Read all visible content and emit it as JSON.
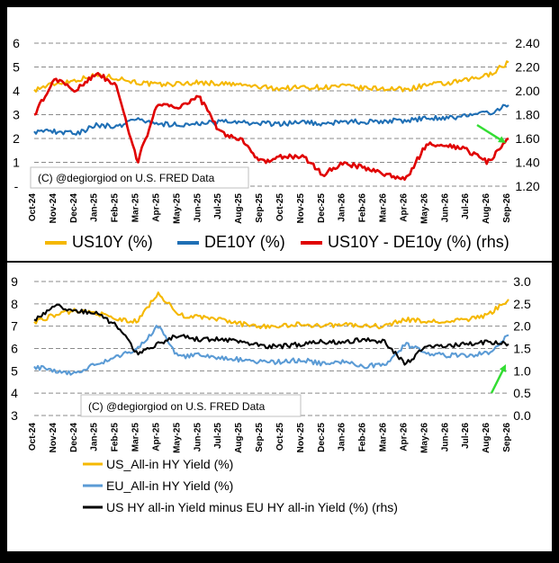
{
  "chart_data": [
    {
      "type": "line",
      "x_ticks": [
        "Oct-24",
        "Nov-24",
        "Dec-24",
        "Jan-25",
        "Feb-25",
        "Mar-25",
        "Apr-25",
        "May-25",
        "Jun-25",
        "Jul-25",
        "Aug-25",
        "Sep-25",
        "Oct-25",
        "Nov-25",
        "Dec-25",
        "Jan-26",
        "Feb-26",
        "Mar-26",
        "Apr-26",
        "May-26",
        "Jun-26",
        "Jul-26",
        "Aug-26",
        "Sep-26"
      ],
      "y_left_ticks": [
        "-",
        "1",
        "2",
        "3",
        "4",
        "5",
        "6"
      ],
      "y_right_ticks": [
        "1.20",
        "1.40",
        "1.60",
        "1.80",
        "2.00",
        "2.20",
        "2.40"
      ],
      "ylim_left": [
        0,
        6
      ],
      "ylim_right": [
        1.2,
        2.4
      ],
      "grid": "horizontal dashed",
      "legend_position": "bottom",
      "annotation": "(C) @degiorgiod on U.S. FRED Data",
      "arrow": {
        "color": "#33dd33",
        "direction": "down-right"
      },
      "series": [
        {
          "name": "US10Y (%)",
          "axis": "left",
          "color": "#f5b800",
          "values": [
            4.05,
            4.3,
            4.45,
            4.65,
            4.55,
            4.35,
            4.25,
            4.3,
            4.35,
            4.3,
            4.25,
            4.15,
            4.1,
            4.15,
            4.15,
            4.2,
            4.1,
            4.1,
            4.05,
            4.25,
            4.3,
            4.45,
            4.65,
            5.2
          ]
        },
        {
          "name": "DE10Y (%)",
          "axis": "left",
          "color": "#1f6fb5",
          "values": [
            2.3,
            2.3,
            2.2,
            2.55,
            2.5,
            2.85,
            2.6,
            2.6,
            2.6,
            2.7,
            2.65,
            2.65,
            2.6,
            2.7,
            2.6,
            2.7,
            2.7,
            2.75,
            2.75,
            2.85,
            2.85,
            2.95,
            3.05,
            3.4
          ]
        },
        {
          "name": "US10Y - DE10y (%) (rhs)",
          "axis": "right",
          "color": "#e00000",
          "values": [
            1.8,
            2.1,
            2.0,
            2.15,
            2.05,
            1.4,
            1.9,
            1.85,
            1.95,
            1.65,
            1.6,
            1.4,
            1.45,
            1.45,
            1.3,
            1.4,
            1.35,
            1.3,
            1.25,
            1.55,
            1.55,
            1.5,
            1.4,
            1.6
          ]
        }
      ]
    },
    {
      "type": "line",
      "x_ticks": [
        "Oct-24",
        "Nov-24",
        "Dec-24",
        "Jan-25",
        "Feb-25",
        "Mar-25",
        "Apr-25",
        "May-25",
        "Jun-25",
        "Jul-25",
        "Aug-25",
        "Sep-25",
        "Oct-25",
        "Nov-25",
        "Dec-25",
        "Jan-26",
        "Feb-26",
        "Mar-26",
        "Apr-26",
        "May-26",
        "Jun-26",
        "Jul-26",
        "Aug-26",
        "Sep-26"
      ],
      "y_left_ticks": [
        "3",
        "4",
        "5",
        "6",
        "7",
        "8",
        "9"
      ],
      "y_right_ticks": [
        "0.0",
        "0.5",
        "1.0",
        "1.5",
        "2.0",
        "2.5",
        "3.0"
      ],
      "ylim_left": [
        3,
        9
      ],
      "ylim_right": [
        0,
        3
      ],
      "grid": "horizontal dashed",
      "legend_position": "bottom",
      "annotation": "(C) @degiorgiod on U.S. FRED Data",
      "arrow": {
        "color": "#33dd33",
        "direction": "up-right"
      },
      "series": [
        {
          "name": "US_All-in HY Yield (%)",
          "axis": "left",
          "color": "#f5b800",
          "values": [
            7.2,
            7.5,
            7.7,
            7.6,
            7.3,
            7.2,
            8.5,
            7.5,
            7.4,
            7.3,
            7.1,
            7.0,
            7.0,
            7.1,
            7.0,
            7.1,
            7.0,
            7.0,
            7.3,
            7.2,
            7.2,
            7.3,
            7.5,
            8.2
          ]
        },
        {
          "name": "EU_All-in HY Yield (%)",
          "axis": "left",
          "color": "#5b9bd5",
          "values": [
            5.2,
            5.0,
            4.9,
            5.3,
            5.6,
            6.0,
            7.0,
            5.6,
            5.7,
            5.6,
            5.5,
            5.4,
            5.4,
            5.5,
            5.3,
            5.4,
            5.2,
            5.3,
            6.2,
            5.8,
            5.7,
            5.7,
            5.8,
            6.6
          ]
        },
        {
          "name": "US HY all-in Yield minus EU HY  all-in Yield (%) (rhs)",
          "axis": "right",
          "color": "#000000",
          "values": [
            2.15,
            2.45,
            2.35,
            2.3,
            2.0,
            1.4,
            1.6,
            1.8,
            1.7,
            1.7,
            1.65,
            1.55,
            1.55,
            1.6,
            1.65,
            1.65,
            1.7,
            1.65,
            1.15,
            1.55,
            1.55,
            1.6,
            1.65,
            1.6
          ]
        }
      ]
    }
  ]
}
